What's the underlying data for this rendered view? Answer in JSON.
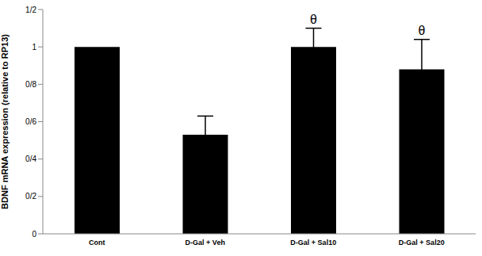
{
  "chart_data": {
    "type": "bar",
    "y_label": "BDNF mRNA expression (relative to RP13)",
    "categories": [
      "Cont",
      "D-Gal + Veh",
      "D-Gal + Sal10",
      "D-Gal + Sal20"
    ],
    "values": [
      1.0,
      0.53,
      1.0,
      0.88
    ],
    "errors": [
      0,
      0.1,
      0.1,
      0.16
    ],
    "annotations": [
      null,
      null,
      "θ",
      "θ"
    ],
    "color": "#000000",
    "ylim": [
      0,
      1.2
    ],
    "yticks": [
      0,
      {
        "value": 0.2,
        "label": "0/2"
      },
      {
        "value": 0.4,
        "label": "0/4"
      },
      {
        "value": 0.6,
        "label": "0/6"
      },
      {
        "value": 0.8,
        "label": "0/8"
      },
      1,
      {
        "value": 1.2,
        "label": "1/2"
      }
    ],
    "grid": false
  }
}
